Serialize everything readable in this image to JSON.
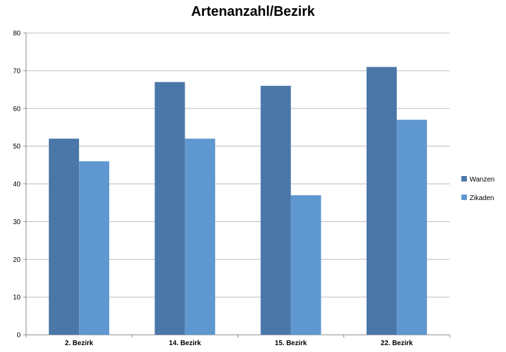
{
  "chart_data": {
    "type": "bar",
    "title": "Artenanzahl/Bezirk",
    "categories": [
      "2. Bezirk",
      "14. Bezirk",
      "15. Bezirk",
      "22. Bezirk"
    ],
    "series": [
      {
        "name": "Wanzen",
        "values": [
          52,
          67,
          66,
          71
        ],
        "color": "#4a77a8"
      },
      {
        "name": "Zikaden",
        "values": [
          46,
          52,
          37,
          57
        ],
        "color": "#5f97d0"
      }
    ],
    "yticks": [
      0,
      10,
      20,
      30,
      40,
      50,
      60,
      70,
      80
    ],
    "ylim": [
      0,
      80
    ],
    "grid": true,
    "legend_position": "right"
  }
}
